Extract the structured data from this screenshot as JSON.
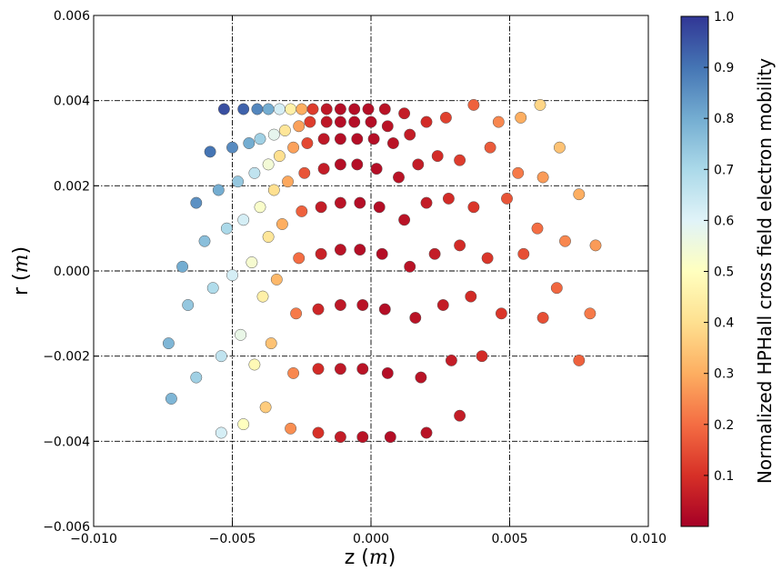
{
  "chart_data": {
    "type": "scatter",
    "title": "",
    "xlabel": "z",
    "xlabel_unit": "m",
    "ylabel": "r",
    "ylabel_unit": "m",
    "xlim": [
      -0.01,
      0.01
    ],
    "ylim": [
      -0.006,
      0.006
    ],
    "xticks": [
      "−0.010",
      "−0.005",
      "0.000",
      "0.005",
      "0.010"
    ],
    "yticks": [
      "−0.006",
      "−0.004",
      "−0.002",
      "0.000",
      "0.002",
      "0.004",
      "0.006"
    ],
    "grid": true,
    "colormap": "RdYlBu",
    "colorbar": {
      "label": "Normalized HPHall cross field electron mobility",
      "range": [
        0.0,
        1.0
      ],
      "ticks": [
        "0.1",
        "0.2",
        "0.3",
        "0.4",
        "0.5",
        "0.6",
        "0.7",
        "0.8",
        "0.9",
        "1.0"
      ],
      "tick_values": [
        0.1,
        0.2,
        0.3,
        0.4,
        0.5,
        0.6,
        0.7,
        0.8,
        0.9,
        1.0
      ]
    },
    "series": [
      {
        "description": "Points arranged along radial rays; each ray listed as x (z in m), y (r in m), c (normalized mobility)",
        "rays": [
          {
            "x": [
              -0.0053,
              -0.0058,
              -0.0063,
              -0.0068,
              -0.0073
            ],
            "y": [
              0.0038,
              0.0028,
              0.0016,
              0.0001,
              -0.0017
            ],
            "c": [
              0.96,
              0.9,
              0.85,
              0.8,
              0.78
            ]
          },
          {
            "x": [
              -0.0046,
              -0.005,
              -0.0055,
              -0.006,
              -0.0066,
              -0.0072
            ],
            "y": [
              0.0038,
              0.0029,
              0.0019,
              0.0007,
              -0.0008,
              -0.003
            ],
            "c": [
              0.93,
              0.86,
              0.8,
              0.76,
              0.74,
              0.78
            ]
          },
          {
            "x": [
              -0.0041,
              -0.0044,
              -0.0048,
              -0.0052,
              -0.0057,
              -0.0063
            ],
            "y": [
              0.0038,
              0.003,
              0.0021,
              0.001,
              -0.0004,
              -0.0025
            ],
            "c": [
              0.87,
              0.8,
              0.74,
              0.7,
              0.69,
              0.72
            ]
          },
          {
            "x": [
              -0.0037,
              -0.004,
              -0.0042,
              -0.0046,
              -0.005,
              -0.0054
            ],
            "y": [
              0.0038,
              0.0031,
              0.0023,
              0.0012,
              -0.0001,
              -0.002
            ],
            "c": [
              0.8,
              0.72,
              0.66,
              0.62,
              0.62,
              0.66
            ]
          },
          {
            "x": [
              -0.0033,
              -0.0035,
              -0.0037,
              -0.004,
              -0.0043,
              -0.0047,
              -0.0054
            ],
            "y": [
              0.0038,
              0.0032,
              0.0025,
              0.0015,
              0.0002,
              -0.0015,
              -0.0038
            ],
            "c": [
              0.62,
              0.58,
              0.54,
              0.52,
              0.53,
              0.57,
              0.62
            ]
          },
          {
            "x": [
              -0.0029,
              -0.0031,
              -0.0033,
              -0.0035,
              -0.0037,
              -0.0039,
              -0.0042,
              -0.0046
            ],
            "y": [
              0.0038,
              0.0033,
              0.0027,
              0.0019,
              0.0008,
              -0.0006,
              -0.0022,
              -0.0036
            ],
            "c": [
              0.45,
              0.42,
              0.4,
              0.4,
              0.42,
              0.45,
              0.48,
              0.5
            ]
          },
          {
            "x": [
              -0.0025,
              -0.0026,
              -0.0028,
              -0.003,
              -0.0032,
              -0.0034,
              -0.0036,
              -0.0038
            ],
            "y": [
              0.0038,
              0.0034,
              0.0029,
              0.0021,
              0.0011,
              -0.0002,
              -0.0017,
              -0.0032
            ],
            "c": [
              0.3,
              0.28,
              0.28,
              0.29,
              0.3,
              0.32,
              0.34,
              0.36
            ]
          },
          {
            "x": [
              -0.0021,
              -0.0022,
              -0.0023,
              -0.0024,
              -0.0025,
              -0.0026,
              -0.0027,
              -0.0028,
              -0.0029
            ],
            "y": [
              0.0038,
              0.0035,
              0.003,
              0.0023,
              0.0014,
              0.0003,
              -0.001,
              -0.0024,
              -0.0037
            ],
            "c": [
              0.12,
              0.12,
              0.14,
              0.16,
              0.18,
              0.2,
              0.22,
              0.24,
              0.25
            ]
          },
          {
            "x": [
              -0.0016,
              -0.0016,
              -0.0017,
              -0.0017,
              -0.0018,
              -0.0018,
              -0.0019,
              -0.0019,
              -0.0019
            ],
            "y": [
              0.0038,
              0.0035,
              0.0031,
              0.0024,
              0.0015,
              0.0004,
              -0.0009,
              -0.0023,
              -0.0038
            ],
            "c": [
              0.05,
              0.05,
              0.05,
              0.06,
              0.06,
              0.07,
              0.08,
              0.09,
              0.1
            ]
          },
          {
            "x": [
              -0.0011,
              -0.0011,
              -0.0011,
              -0.0011,
              -0.0011,
              -0.0011,
              -0.0011,
              -0.0011,
              -0.0011
            ],
            "y": [
              0.0038,
              0.0035,
              0.0031,
              0.0025,
              0.0016,
              0.0005,
              -0.0008,
              -0.0023,
              -0.0039
            ],
            "c": [
              0.03,
              0.03,
              0.03,
              0.03,
              0.04,
              0.04,
              0.05,
              0.05,
              0.06
            ]
          },
          {
            "x": [
              -0.0006,
              -0.0006,
              -0.0005,
              -0.0005,
              -0.0004,
              -0.0004,
              -0.0003,
              -0.0003,
              -0.0003
            ],
            "y": [
              0.0038,
              0.0035,
              0.0031,
              0.0025,
              0.0016,
              0.0005,
              -0.0008,
              -0.0023,
              -0.0039
            ],
            "c": [
              0.03,
              0.03,
              0.03,
              0.03,
              0.03,
              0.03,
              0.04,
              0.04,
              0.04
            ]
          },
          {
            "x": [
              -0.0001,
              0.0,
              0.0001,
              0.0002,
              0.0003,
              0.0004,
              0.0005,
              0.0006,
              0.0007
            ],
            "y": [
              0.0038,
              0.0035,
              0.0031,
              0.0024,
              0.0015,
              0.0004,
              -0.0009,
              -0.0024,
              -0.0039
            ],
            "c": [
              0.03,
              0.03,
              0.03,
              0.03,
              0.03,
              0.03,
              0.03,
              0.03,
              0.03
            ]
          },
          {
            "x": [
              0.0005,
              0.0006,
              0.0008,
              0.001,
              0.0012,
              0.0014,
              0.0016,
              0.0018,
              0.002
            ],
            "y": [
              0.0038,
              0.0034,
              0.003,
              0.0022,
              0.0012,
              0.0001,
              -0.0011,
              -0.0025,
              -0.0038
            ],
            "c": [
              0.04,
              0.04,
              0.04,
              0.04,
              0.04,
              0.04,
              0.04,
              0.04,
              0.04
            ]
          },
          {
            "x": [
              0.0012,
              0.0014,
              0.0017,
              0.002,
              0.0023,
              0.0026,
              0.0029,
              0.0032
            ],
            "y": [
              0.0037,
              0.0032,
              0.0025,
              0.0016,
              0.0004,
              -0.0008,
              -0.0021,
              -0.0034
            ],
            "c": [
              0.06,
              0.06,
              0.06,
              0.06,
              0.06,
              0.06,
              0.06,
              0.06
            ]
          },
          {
            "x": [
              0.002,
              0.0024,
              0.0028,
              0.0032,
              0.0036,
              0.004
            ],
            "y": [
              0.0035,
              0.0027,
              0.0017,
              0.0006,
              -0.0006,
              -0.002
            ],
            "c": [
              0.09,
              0.09,
              0.09,
              0.09,
              0.09,
              0.09
            ]
          },
          {
            "x": [
              0.0027,
              0.0032,
              0.0037,
              0.0042,
              0.0047
            ],
            "y": [
              0.0036,
              0.0026,
              0.0015,
              0.0003,
              -0.001
            ],
            "c": [
              0.13,
              0.12,
              0.11,
              0.11,
              0.11
            ]
          },
          {
            "x": [
              0.0037,
              0.0043,
              0.0049,
              0.0055,
              0.0062
            ],
            "y": [
              0.0039,
              0.0029,
              0.0017,
              0.0004,
              -0.0011
            ],
            "c": [
              0.18,
              0.17,
              0.16,
              0.15,
              0.15
            ]
          },
          {
            "x": [
              0.0046,
              0.0053,
              0.006,
              0.0067,
              0.0075
            ],
            "y": [
              0.0035,
              0.0023,
              0.001,
              -0.0004,
              -0.0021
            ],
            "c": [
              0.24,
              0.22,
              0.2,
              0.19,
              0.18
            ]
          },
          {
            "x": [
              0.0054,
              0.0062,
              0.007,
              0.0079
            ],
            "y": [
              0.0036,
              0.0022,
              0.0007,
              -0.001
            ],
            "c": [
              0.3,
              0.27,
              0.24,
              0.22
            ]
          },
          {
            "x": [
              0.0061,
              0.0068,
              0.0075,
              0.0081
            ],
            "y": [
              0.0039,
              0.0029,
              0.0018,
              0.0006
            ],
            "c": [
              0.38,
              0.34,
              0.3,
              0.27
            ]
          }
        ]
      }
    ]
  }
}
